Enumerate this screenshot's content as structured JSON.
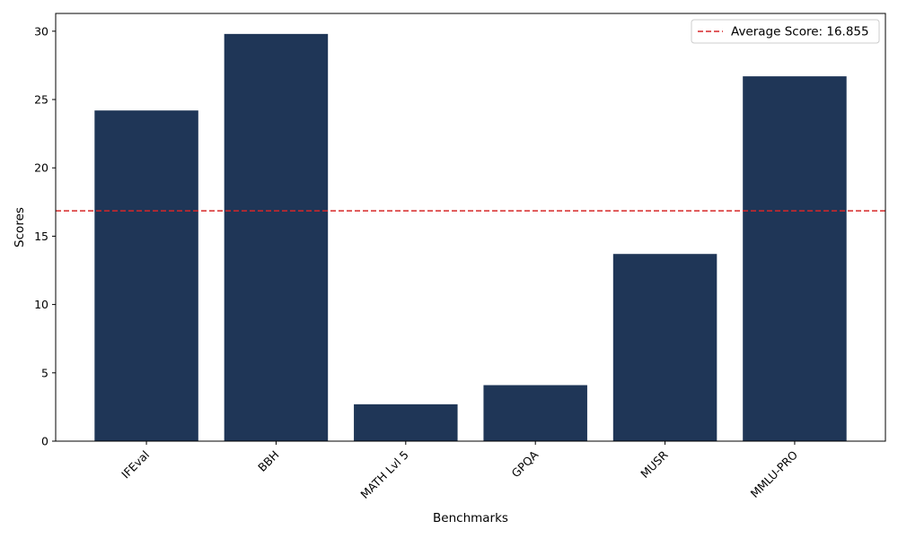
{
  "chart_data": {
    "type": "bar",
    "title": "",
    "xlabel": "Benchmarks",
    "ylabel": "Scores",
    "categories": [
      "IFEval",
      "BBH",
      "MATH Lvl 5",
      "GPQA",
      "MUSR",
      "MMLU-PRO"
    ],
    "values": [
      24.2,
      29.8,
      2.7,
      4.1,
      13.7,
      26.7
    ],
    "ylim": [
      0,
      31.3
    ],
    "yticks": [
      0,
      5,
      10,
      15,
      20,
      25,
      30
    ],
    "bar_color": "#1f3657",
    "average_line": {
      "value": 16.855,
      "label": "Average Score: 16.855",
      "color": "#d62728",
      "style": "dashed"
    },
    "legend": {
      "placement": "top-right",
      "entries": [
        "Average Score: 16.855"
      ]
    },
    "grid": false
  }
}
